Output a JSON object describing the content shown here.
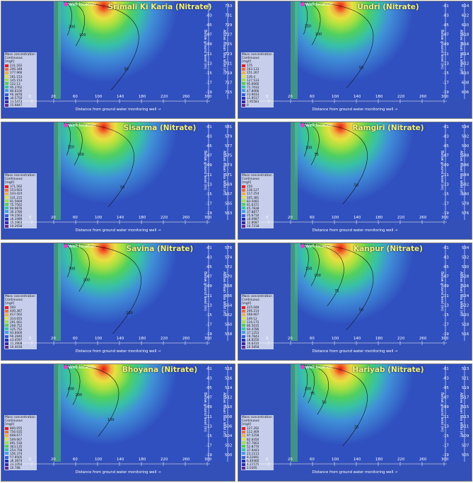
{
  "common": {
    "well_label": "Well location",
    "legend_header": [
      "Mass concentration",
      "Continuous",
      "[mg/l]"
    ],
    "x_axis_label": "Distance from ground water monitoring well",
    "y_axis_left_label": "Below ground level (m)",
    "y_axis_right_label": "Above mean sea level (m)",
    "colors": [
      "#e02020",
      "#f07030",
      "#f0b040",
      "#e0e040",
      "#a0e040",
      "#50d050",
      "#30c8a0",
      "#40a0e0",
      "#3060d8",
      "#2030b0",
      "#3828a0",
      "#602890"
    ]
  },
  "chart_data": [
    {
      "type": "heatmap",
      "title": "Srimali Ki Karia (Nitrate)",
      "x_ticks": [
        "20",
        "0",
        "20",
        "60",
        "100",
        "140",
        "180",
        "220",
        "260",
        "300"
      ],
      "depth_ticks": [
        "-01",
        "-03",
        "-05",
        "-07",
        "-09",
        "-11",
        "-13",
        "-15",
        "-17",
        "-19"
      ],
      "msl_ticks": [
        "733",
        "731",
        "729",
        "727",
        "725",
        "723",
        "721",
        "719",
        "717",
        "715"
      ],
      "legend_values": [
        "231.162",
        "206.348",
        "177.966",
        "161.153",
        "145.153",
        "122.13",
        "95.2762",
        "80.6100",
        "46.3878",
        "30.5750",
        "13.5473",
        "15.9847"
      ],
      "contours": [
        {
          "level": "200",
          "extent": 0.05
        },
        {
          "level": "100",
          "extent": 0.16
        },
        {
          "level": "50",
          "extent": 0.62
        }
      ]
    },
    {
      "type": "heatmap",
      "title": "Undri (Nitrate)",
      "x_ticks": [
        "20",
        "0",
        "20",
        "60",
        "100",
        "140",
        "180",
        "220",
        "260",
        "300"
      ],
      "depth_ticks": [
        "-01",
        "-03",
        "-05",
        "-07",
        "-09",
        "-11",
        "-13",
        "-15",
        "-17",
        "-19"
      ],
      "msl_ticks": [
        "624",
        "622",
        "620",
        "618",
        "616",
        "614",
        "612",
        "610",
        "608",
        "606"
      ],
      "legend_values": [
        "175",
        "163.133",
        "151.267",
        "139.4",
        "127.533",
        "95.6666",
        "71.7033",
        "47.8066",
        "23.9033",
        "11.9517",
        "5.95583",
        "0"
      ],
      "contours": [
        {
          "level": "150",
          "extent": 0.04
        },
        {
          "level": "100",
          "extent": 0.15
        },
        {
          "level": "50",
          "extent": 0.6
        }
      ]
    },
    {
      "type": "heatmap",
      "title": "Sisarma (Nitrate)",
      "x_ticks": [
        "20",
        "0",
        "20",
        "60",
        "100",
        "140",
        "180",
        "220",
        "260",
        "300"
      ],
      "depth_ticks": [
        "-01",
        "-03",
        "-05",
        "-07",
        "-09",
        "-11",
        "-13",
        "-15",
        "-17",
        "-19"
      ],
      "msl_ticks": [
        "581",
        "579",
        "577",
        "575",
        "573",
        "571",
        "569",
        "567",
        "565",
        "563"
      ],
      "legend_values": [
        "171.562",
        "153.603",
        "143.424",
        "131.215",
        "91.5669",
        "75.7562",
        "60.9876",
        "30.3780",
        "19.1563",
        "16.3489",
        "15.1963",
        "10.2658"
      ],
      "contours": [
        {
          "level": "150",
          "extent": 0.04
        },
        {
          "level": "100",
          "extent": 0.14
        },
        {
          "level": "50",
          "extent": 0.58
        }
      ]
    },
    {
      "type": "heatmap",
      "title": "Ramgiri (Nitrate)",
      "x_ticks": [
        "20",
        "0",
        "20",
        "60",
        "100",
        "140",
        "180",
        "220",
        "260",
        "300"
      ],
      "depth_ticks": [
        "-01",
        "-03",
        "-05",
        "-07",
        "-09",
        "-11",
        "-13",
        "-15",
        "-17",
        "-19"
      ],
      "msl_ticks": [
        "594",
        "592",
        "590",
        "588",
        "586",
        "584",
        "582",
        "580",
        "578",
        "576"
      ],
      "legend_values": [
        "150",
        "138.127",
        "117.254",
        "105.381",
        "83.5081",
        "61.6371",
        "45.7838",
        "37.8877",
        "25.6710",
        "16.0987",
        "12.8087",
        "10.7218"
      ],
      "contours": [
        {
          "level": "100",
          "extent": 0.05
        },
        {
          "level": "75",
          "extent": 0.14
        },
        {
          "level": "50",
          "extent": 0.55
        }
      ]
    },
    {
      "type": "heatmap",
      "title": "Savina (Nitrate)",
      "x_ticks": [
        "20",
        "0",
        "20",
        "60",
        "100",
        "140",
        "180",
        "220",
        "260",
        "300"
      ],
      "depth_ticks": [
        "-01",
        "-03",
        "-05",
        "-07",
        "-09",
        "-11",
        "-13",
        "-15",
        "-17",
        "-19"
      ],
      "msl_ticks": [
        "576",
        "574",
        "572",
        "570",
        "568",
        "566",
        "564",
        "562",
        "560",
        "558"
      ],
      "legend_values": [
        "500",
        "440.387",
        "417.562",
        "314.655",
        "291.661",
        "208.752",
        "125.752",
        "93.6600",
        "60.3940",
        "43.4597",
        "11.3908",
        "10.4030"
      ],
      "contours": [
        {
          "level": "300",
          "extent": 0.05
        },
        {
          "level": "200",
          "extent": 0.2
        },
        {
          "level": "100",
          "extent": 0.64
        }
      ]
    },
    {
      "type": "heatmap",
      "title": "Kanpur (Nitrate)",
      "x_ticks": [
        "20",
        "0",
        "20",
        "60",
        "100",
        "140",
        "180",
        "220",
        "260",
        "300"
      ],
      "depth_ticks": [
        "-01",
        "-03",
        "-05",
        "-07",
        "-09",
        "-11",
        "-13",
        "-15",
        "-17",
        "-19"
      ],
      "msl_ticks": [
        "534",
        "532",
        "530",
        "528",
        "526",
        "524",
        "522",
        "520",
        "518",
        "516"
      ],
      "legend_values": [
        "225.048",
        "206.214",
        "168.667",
        "149.12",
        "116.175",
        "86.5035",
        "60.4786",
        "37.1253",
        "19.7643",
        "18.8250",
        "16.6410",
        "10.5858"
      ],
      "contours": [
        {
          "level": "150",
          "extent": 0.05
        },
        {
          "level": "100",
          "extent": 0.14
        },
        {
          "level": "75",
          "extent": 0.35
        },
        {
          "level": "50",
          "extent": 0.6
        }
      ]
    },
    {
      "type": "heatmap",
      "title": "Bhoyana (Nitrate)",
      "x_ticks": [
        "20",
        "0",
        "20",
        "60",
        "100",
        "140",
        "180",
        "220",
        "260",
        "300"
      ],
      "depth_ticks": [
        "-01",
        "-03",
        "-05",
        "-07",
        "-09",
        "-11",
        "-13",
        "-15",
        "-17",
        "-19"
      ],
      "msl_ticks": [
        "518",
        "516",
        "514",
        "512",
        "510",
        "508",
        "506",
        "504",
        "502",
        "500"
      ],
      "legend_values": [
        "800.055",
        "756.035",
        "608.677",
        "509.667",
        "491.516",
        "363.135",
        "254.758",
        "156.374",
        "57.9505",
        "36.3874",
        "23.1054",
        "10.788"
      ],
      "contours": [
        {
          "level": "400",
          "extent": 0.04
        },
        {
          "level": "200",
          "extent": 0.12
        },
        {
          "level": "100",
          "extent": 0.45
        }
      ]
    },
    {
      "type": "heatmap",
      "title": "Hariyab (Nitrate)",
      "x_ticks": [
        "20",
        "0",
        "20",
        "60",
        "100",
        "140",
        "180",
        "220",
        "260",
        "300"
      ],
      "depth_ticks": [
        "-01",
        "-03",
        "-05",
        "-07",
        "-09",
        "-11",
        "-13",
        "-15",
        "-17",
        "-19"
      ],
      "msl_ticks": [
        "523",
        "521",
        "519",
        "517",
        "515",
        "513",
        "511",
        "509",
        "507",
        "505"
      ],
      "legend_values": [
        "127.292",
        "112.469",
        "97.5258",
        "82.6450",
        "67.7663",
        "52.8770",
        "37.9443",
        "23.1113",
        "8.22691",
        "6.40460",
        "4.21575",
        "2.0305"
      ],
      "contours": [
        {
          "level": "100",
          "extent": 0.04
        },
        {
          "level": "75",
          "extent": 0.1
        },
        {
          "level": "50",
          "extent": 0.22
        },
        {
          "level": "25",
          "extent": 0.55
        }
      ]
    }
  ]
}
